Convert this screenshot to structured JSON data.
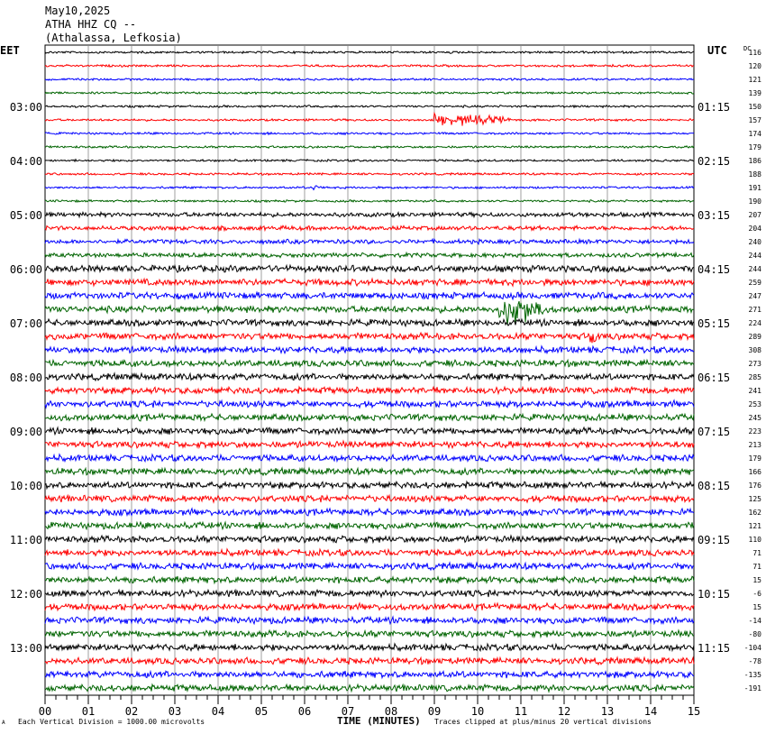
{
  "header": {
    "date": "May10,2025",
    "station": "ATHA HHZ CQ --",
    "location": "(Athalassa, Lefkosia)"
  },
  "left_zone_label": "EET",
  "right_zone_label": "UTC",
  "dc_label": "DC",
  "footer": {
    "xlabel": "TIME (MINUTES)",
    "scale_note": "Each Vertical Division = 1000.00 microvolts",
    "clip_note": "Traces clipped at plus/minus 20 vertical divisions",
    "corner_mark": "A"
  },
  "colors": {
    "trace_cycle": [
      "#000000",
      "#ff0000",
      "#0000ff",
      "#006400"
    ],
    "grid": "#888888"
  },
  "chart_data": {
    "type": "line",
    "title": "May10,2025 ATHA HHZ CQ -- (Athalassa, Lefkosia)",
    "xlabel": "TIME (MINUTES)",
    "xlim": [
      0,
      15
    ],
    "x_ticks": [
      "00",
      "01",
      "02",
      "03",
      "04",
      "05",
      "06",
      "07",
      "08",
      "09",
      "10",
      "11",
      "12",
      "13",
      "14",
      "15"
    ],
    "rows_per_hour": 4,
    "row_count": 48,
    "left_hour_labels": [
      "03:00",
      "04:00",
      "05:00",
      "06:00",
      "07:00",
      "08:00",
      "09:00",
      "10:00",
      "11:00",
      "12:00",
      "13:00"
    ],
    "left_hour_label_rows": [
      4,
      8,
      12,
      16,
      20,
      24,
      28,
      32,
      36,
      40,
      44
    ],
    "right_hour_labels": [
      "01:15",
      "02:15",
      "03:15",
      "04:15",
      "05:15",
      "06:15",
      "07:15",
      "08:15",
      "09:15",
      "10:15",
      "11:15"
    ],
    "dc_offsets": [
      116,
      120,
      121,
      139,
      150,
      157,
      174,
      179,
      186,
      188,
      191,
      190,
      207,
      204,
      240,
      244,
      244,
      259,
      247,
      271,
      224,
      289,
      308,
      273,
      285,
      241,
      253,
      245,
      223,
      213,
      179,
      166,
      176,
      125,
      162,
      121,
      110,
      71,
      71,
      15,
      -6,
      15,
      -14,
      -80,
      -104,
      -78,
      -135,
      -191
    ],
    "trace_amplitude_per_row": [
      1,
      1,
      1,
      1,
      1,
      1,
      1,
      1,
      1,
      1,
      1,
      1,
      2,
      2,
      2,
      2,
      3,
      3,
      3,
      3,
      3,
      3,
      3,
      3,
      3,
      3,
      3,
      3,
      3,
      3,
      3,
      3,
      3,
      3,
      3,
      3,
      3,
      3,
      3,
      3,
      3,
      3,
      3,
      3,
      3,
      3,
      3,
      3
    ],
    "events": [
      {
        "row": 5,
        "minute_start": 9.0,
        "minute_end": 10.8,
        "peak_divisions": 0.6
      },
      {
        "row": 19,
        "minute_start": 10.5,
        "minute_end": 11.5,
        "peak_divisions": 1.5
      },
      {
        "row": 21,
        "minute_start": 12.6,
        "minute_end": 12.8,
        "peak_divisions": 0.8
      },
      {
        "row": 10,
        "minute_start": 6.2,
        "minute_end": 6.3,
        "peak_divisions": 0.6
      }
    ]
  }
}
